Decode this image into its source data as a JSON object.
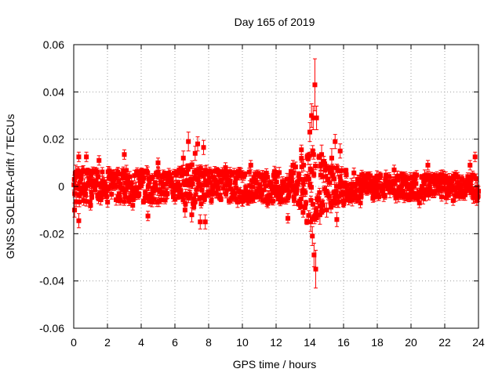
{
  "chart_data": {
    "type": "scatter",
    "title": "Day 165 of 2019",
    "xlabel": "GPS time / hours",
    "ylabel": "GNSS SOLERA-drift / TECUs",
    "xlim": [
      0,
      24
    ],
    "ylim": [
      -0.06,
      0.06
    ],
    "x_ticks": [
      {
        "value": 0,
        "label": "0"
      },
      {
        "value": 2,
        "label": "2"
      },
      {
        "value": 4,
        "label": "4"
      },
      {
        "value": 6,
        "label": "6"
      },
      {
        "value": 8,
        "label": "8"
      },
      {
        "value": 10,
        "label": "10"
      },
      {
        "value": 12,
        "label": "12"
      },
      {
        "value": 14,
        "label": "14"
      },
      {
        "value": 16,
        "label": "16"
      },
      {
        "value": 18,
        "label": "18"
      },
      {
        "value": 20,
        "label": "20"
      },
      {
        "value": 22,
        "label": "22"
      },
      {
        "value": 24,
        "label": "24"
      }
    ],
    "y_ticks": [
      {
        "value": -0.06,
        "label": "-0.06"
      },
      {
        "value": -0.04,
        "label": "-0.04"
      },
      {
        "value": -0.02,
        "label": "-0.02"
      },
      {
        "value": 0,
        "label": "0"
      },
      {
        "value": 0.02,
        "label": "0.02"
      },
      {
        "value": 0.04,
        "label": "0.04"
      },
      {
        "value": 0.06,
        "label": "0.06"
      }
    ],
    "grid": true,
    "series": [
      {
        "name": "SOLERA drift",
        "color": "#ff0000",
        "marker": "square",
        "error_bars": true,
        "noise_profile": [
          {
            "hour": 0,
            "amplitude": 0.008
          },
          {
            "hour": 6,
            "amplitude": 0.008
          },
          {
            "hour": 7,
            "amplitude": 0.011
          },
          {
            "hour": 8,
            "amplitude": 0.008
          },
          {
            "hour": 13,
            "amplitude": 0.008
          },
          {
            "hour": 14,
            "amplitude": 0.02
          },
          {
            "hour": 15,
            "amplitude": 0.011
          },
          {
            "hour": 17,
            "amplitude": 0.006
          },
          {
            "hour": 24,
            "amplitude": 0.006
          }
        ],
        "points": [
          {
            "x": 0.05,
            "y": -0.01,
            "err": 0.003
          },
          {
            "x": 0.12,
            "y": 0.006,
            "err": 0.003
          },
          {
            "x": 0.3,
            "y": 0.0125,
            "err": 0.002
          },
          {
            "x": 0.3,
            "y": -0.0145,
            "err": 0.003
          },
          {
            "x": 0.75,
            "y": 0.0125,
            "err": 0.002
          },
          {
            "x": 1.0,
            "y": -0.008,
            "err": 0.002
          },
          {
            "x": 1.5,
            "y": 0.011,
            "err": 0.002
          },
          {
            "x": 3.0,
            "y": 0.0135,
            "err": 0.002
          },
          {
            "x": 3.5,
            "y": -0.008,
            "err": 0.002
          },
          {
            "x": 4.4,
            "y": -0.0125,
            "err": 0.002
          },
          {
            "x": 5.0,
            "y": 0.01,
            "err": 0.002
          },
          {
            "x": 6.5,
            "y": 0.012,
            "err": 0.003
          },
          {
            "x": 6.6,
            "y": -0.01,
            "err": 0.003
          },
          {
            "x": 6.8,
            "y": 0.019,
            "err": 0.004
          },
          {
            "x": 7.0,
            "y": -0.012,
            "err": 0.003
          },
          {
            "x": 7.2,
            "y": 0.014,
            "err": 0.003
          },
          {
            "x": 7.35,
            "y": 0.018,
            "err": 0.003
          },
          {
            "x": 7.5,
            "y": -0.015,
            "err": 0.003
          },
          {
            "x": 7.7,
            "y": 0.0165,
            "err": 0.003
          },
          {
            "x": 7.8,
            "y": -0.015,
            "err": 0.003
          },
          {
            "x": 9.0,
            "y": 0.008,
            "err": 0.002
          },
          {
            "x": 10.5,
            "y": 0.009,
            "err": 0.002
          },
          {
            "x": 11.5,
            "y": -0.007,
            "err": 0.002
          },
          {
            "x": 12.7,
            "y": -0.0135,
            "err": 0.002
          },
          {
            "x": 13.0,
            "y": 0.009,
            "err": 0.002
          },
          {
            "x": 13.5,
            "y": 0.0155,
            "err": 0.002
          },
          {
            "x": 13.6,
            "y": -0.011,
            "err": 0.002
          },
          {
            "x": 14.0,
            "y": 0.023,
            "err": 0.004
          },
          {
            "x": 14.05,
            "y": -0.015,
            "err": 0.004
          },
          {
            "x": 14.1,
            "y": 0.03,
            "err": 0.005
          },
          {
            "x": 14.15,
            "y": -0.021,
            "err": 0.004
          },
          {
            "x": 14.2,
            "y": 0.029,
            "err": 0.005
          },
          {
            "x": 14.25,
            "y": -0.029,
            "err": 0.005
          },
          {
            "x": 14.3,
            "y": 0.043,
            "err": 0.011
          },
          {
            "x": 14.35,
            "y": -0.035,
            "err": 0.008
          },
          {
            "x": 14.4,
            "y": 0.029,
            "err": 0.005
          },
          {
            "x": 14.6,
            "y": -0.012,
            "err": 0.004
          },
          {
            "x": 14.7,
            "y": 0.0135,
            "err": 0.004
          },
          {
            "x": 15.0,
            "y": -0.01,
            "err": 0.003
          },
          {
            "x": 15.3,
            "y": 0.012,
            "err": 0.004
          },
          {
            "x": 15.5,
            "y": 0.019,
            "err": 0.003
          },
          {
            "x": 15.6,
            "y": -0.014,
            "err": 0.003
          },
          {
            "x": 15.8,
            "y": 0.015,
            "err": 0.003
          },
          {
            "x": 17.0,
            "y": -0.007,
            "err": 0.002
          },
          {
            "x": 19.0,
            "y": 0.007,
            "err": 0.002
          },
          {
            "x": 20.5,
            "y": -0.007,
            "err": 0.002
          },
          {
            "x": 21.0,
            "y": 0.009,
            "err": 0.002
          },
          {
            "x": 22.5,
            "y": -0.006,
            "err": 0.002
          },
          {
            "x": 23.5,
            "y": 0.009,
            "err": 0.002
          },
          {
            "x": 23.8,
            "y": 0.0125,
            "err": 0.002
          },
          {
            "x": 23.9,
            "y": -0.006,
            "err": 0.002
          },
          {
            "x": 24.0,
            "y": -0.002,
            "err": 0.002
          }
        ]
      }
    ]
  }
}
